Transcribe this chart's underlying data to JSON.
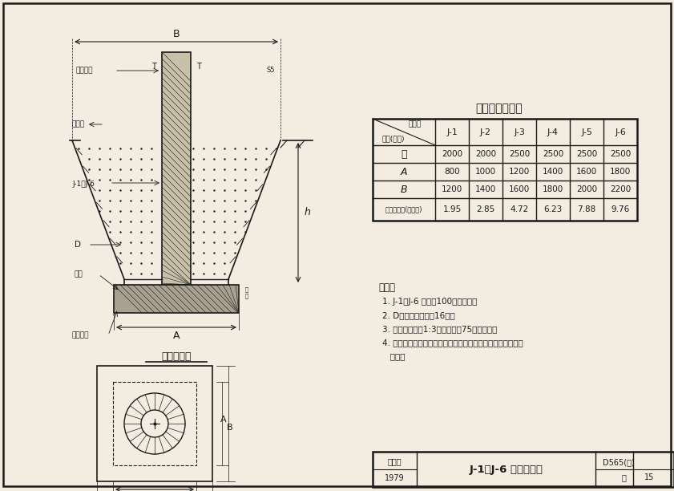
{
  "title": "基础尺寸体积表",
  "table_headers": [
    "构件号\n尺寸(毫米)",
    "J-1",
    "J-2",
    "J-3",
    "J-4",
    "J-5",
    "J-6"
  ],
  "table_rows": [
    [
      "元",
      "2000",
      "2000",
      "2500",
      "2500",
      "2500",
      "2500"
    ],
    [
      "A",
      "800",
      "1000",
      "1200",
      "1400",
      "1600",
      "1800"
    ],
    [
      "B",
      "1200",
      "1400",
      "1600",
      "1800",
      "2000",
      "2200"
    ],
    [
      "混凝土体积(立方米)",
      "1.95",
      "2.85",
      "4.72",
      "6.23",
      "7.88",
      "9.76"
    ]
  ],
  "notes_title": "附注：",
  "notes": [
    "1. J-1～J-6 基础为100号混凝土。",
    "2. D为预制基础见第16页。",
    "3. 垫层为卵石灌1:3水泥沙浆或75号混凝土。",
    "4. 基坑四周土壤切勿扰动，如有部分回填土时、必须很好分层",
    "   夯实。"
  ],
  "footer_left_top": "标准图",
  "footer_left_bottom": "1979",
  "footer_center": "J-1～J-6 基础构造图",
  "footer_right_top": "D565(二)",
  "footer_right_bottom": "页  15",
  "bg_color": "#f2ede0",
  "line_color": "#1a1a1a"
}
